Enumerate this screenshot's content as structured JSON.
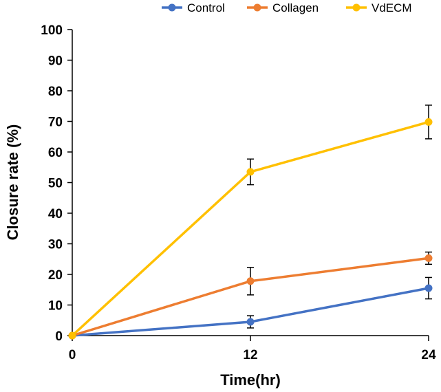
{
  "chart_data": {
    "type": "line",
    "title": "",
    "xlabel": "Time(hr)",
    "ylabel": "Closure rate (%)",
    "x": [
      0,
      12,
      24
    ],
    "x_tick_labels": [
      "0",
      "12",
      "24"
    ],
    "ylim": [
      0,
      100
    ],
    "y_ticks": [
      0,
      10,
      20,
      30,
      40,
      50,
      60,
      70,
      80,
      90,
      100
    ],
    "grid": false,
    "legend_position": "top",
    "series": [
      {
        "name": "Control",
        "color": "#4472C4",
        "values": [
          0,
          4.5,
          15.5
        ],
        "errors": [
          0,
          2.0,
          3.5
        ]
      },
      {
        "name": "Collagen",
        "color": "#ED7D31",
        "values": [
          0,
          17.8,
          25.3
        ],
        "errors": [
          0,
          4.5,
          2.0
        ]
      },
      {
        "name": "VdECM",
        "color": "#FFC000",
        "values": [
          0,
          53.5,
          69.8
        ],
        "errors": [
          0,
          4.2,
          5.5
        ]
      }
    ]
  }
}
